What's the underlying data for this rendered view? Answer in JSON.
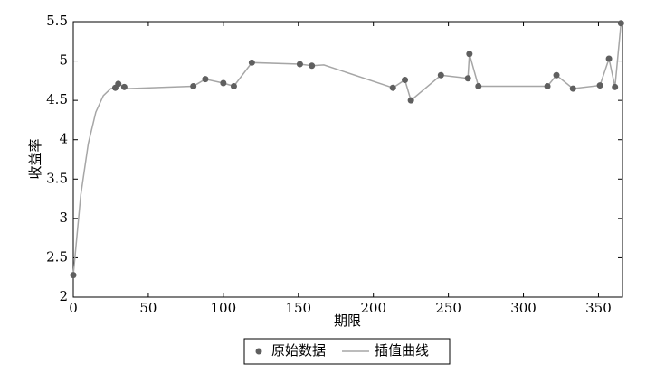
{
  "chart_data": {
    "type": "scatter",
    "xlabel": "期限",
    "ylabel": "收益率",
    "xlim": [
      0,
      366
    ],
    "ylim": [
      2,
      5.5
    ],
    "xticks": [
      0,
      50,
      100,
      150,
      200,
      250,
      300,
      350
    ],
    "yticks": [
      2,
      2.5,
      3,
      3.5,
      4,
      4.5,
      5,
      5.5
    ],
    "grid": false,
    "legend": "bottom",
    "series": [
      {
        "name": "原始数据",
        "mode": "markers",
        "color": "#5f5f5f",
        "x": [
          0,
          28,
          30,
          34,
          80,
          88,
          100,
          107,
          119,
          151,
          159,
          213,
          221,
          225,
          245,
          263,
          264,
          270,
          316,
          322,
          333,
          351,
          357,
          361,
          365
        ],
        "values": [
          2.28,
          4.66,
          4.71,
          4.67,
          4.68,
          4.77,
          4.72,
          4.68,
          4.98,
          4.96,
          4.94,
          4.66,
          4.76,
          4.5,
          4.82,
          4.78,
          5.09,
          4.68,
          4.68,
          4.82,
          4.65,
          4.69,
          5.03,
          4.67,
          5.48
        ]
      },
      {
        "name": "插值曲线",
        "mode": "line",
        "color": "#a6a6a6",
        "x": [
          0,
          5,
          10,
          15,
          20,
          25,
          28,
          30,
          34,
          36,
          80,
          88,
          100,
          107,
          119,
          151,
          159,
          167,
          213,
          221,
          225,
          245,
          263,
          264,
          270,
          316,
          322,
          333,
          351,
          357,
          361,
          365
        ],
        "values": [
          2.28,
          3.3,
          3.95,
          4.35,
          4.56,
          4.65,
          4.66,
          4.71,
          4.67,
          4.65,
          4.68,
          4.77,
          4.72,
          4.68,
          4.98,
          4.96,
          4.94,
          4.95,
          4.66,
          4.76,
          4.5,
          4.82,
          4.78,
          5.09,
          4.68,
          4.68,
          4.82,
          4.65,
          4.69,
          5.03,
          4.67,
          5.48
        ]
      }
    ]
  }
}
